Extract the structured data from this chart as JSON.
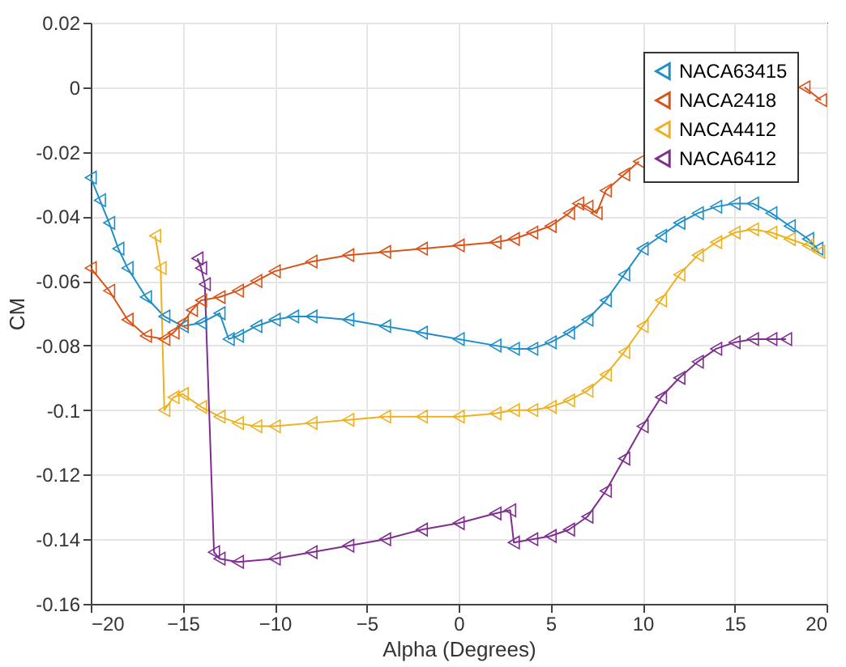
{
  "chart_data": {
    "type": "line",
    "xlabel": "Alpha (Degrees)",
    "ylabel": "CM",
    "xlim": [
      -20,
      20
    ],
    "xticks": [
      -20,
      -15,
      -10,
      -5,
      0,
      5,
      10,
      15,
      20
    ],
    "ylim": [
      -0.16,
      0.02
    ],
    "yticks": [
      -0.16,
      -0.14,
      -0.12,
      -0.1,
      -0.08,
      -0.06,
      -0.04,
      -0.02,
      0,
      0.02
    ],
    "grid": true,
    "legend": "top right",
    "marker": "triangle",
    "line_style": "solid",
    "series": [
      {
        "name": "NACA63415",
        "color": "#1f8fc8",
        "x": [
          -20,
          -19.5,
          -19,
          -18.5,
          -18,
          -17,
          -16,
          -15,
          -14,
          -13,
          -12.5,
          -12,
          -11,
          -10,
          -9,
          -8,
          -6,
          -4,
          -2,
          0,
          2,
          3,
          4,
          5,
          6,
          7,
          8,
          9,
          10,
          11,
          12,
          13,
          14,
          15,
          16,
          17,
          18,
          19,
          19.5
        ],
        "values": [
          -0.028,
          -0.035,
          -0.042,
          -0.05,
          -0.056,
          -0.065,
          -0.071,
          -0.074,
          -0.073,
          -0.07,
          -0.078,
          -0.077,
          -0.074,
          -0.072,
          -0.071,
          -0.071,
          -0.072,
          -0.074,
          -0.076,
          -0.078,
          -0.08,
          -0.081,
          -0.081,
          -0.079,
          -0.076,
          -0.072,
          -0.066,
          -0.058,
          -0.05,
          -0.046,
          -0.042,
          -0.039,
          -0.037,
          -0.036,
          -0.036,
          -0.039,
          -0.043,
          -0.047,
          -0.05
        ]
      },
      {
        "name": "NACA2418",
        "color": "#d95319",
        "x": [
          -20,
          -19,
          -18,
          -17,
          -16,
          -15.5,
          -15,
          -14.5,
          -14,
          -13,
          -12,
          -11,
          -10,
          -8,
          -6,
          -4,
          -2,
          0,
          2,
          3,
          4,
          5,
          6,
          6.5,
          7,
          7.5,
          8,
          9,
          9.8,
          12,
          18.8,
          19.7
        ],
        "values": [
          -0.056,
          -0.063,
          -0.072,
          -0.077,
          -0.078,
          -0.076,
          -0.073,
          -0.069,
          -0.066,
          -0.065,
          -0.063,
          -0.06,
          -0.057,
          -0.054,
          -0.052,
          -0.051,
          -0.05,
          -0.049,
          -0.048,
          -0.047,
          -0.045,
          -0.043,
          -0.039,
          -0.036,
          -0.037,
          -0.039,
          -0.032,
          -0.027,
          -0.023,
          null,
          0.0,
          -0.004
        ]
      },
      {
        "name": "NACA4412",
        "color": "#edb120",
        "x": [
          -16.5,
          -16.2,
          -16,
          -15.5,
          -15,
          -14,
          -13,
          -12,
          -11,
          -10,
          -8,
          -6,
          -4,
          -2,
          0,
          2,
          3,
          4,
          5,
          6,
          7,
          8,
          9,
          10,
          11,
          12,
          13,
          14,
          15,
          16,
          17,
          18,
          19,
          19.6
        ],
        "values": [
          -0.046,
          -0.056,
          -0.1,
          -0.096,
          -0.095,
          -0.099,
          -0.102,
          -0.104,
          -0.105,
          -0.105,
          -0.104,
          -0.103,
          -0.102,
          -0.102,
          -0.102,
          -0.101,
          -0.1,
          -0.1,
          -0.099,
          -0.097,
          -0.094,
          -0.089,
          -0.082,
          -0.074,
          -0.066,
          -0.058,
          -0.052,
          -0.048,
          -0.045,
          -0.044,
          -0.045,
          -0.047,
          -0.049,
          -0.051
        ]
      },
      {
        "name": "NACA6412",
        "color": "#7e2f8e",
        "x": [
          -14.2,
          -14,
          -13.8,
          -13.3,
          -13,
          -12,
          -10,
          -8,
          -6,
          -4,
          -2,
          0,
          2,
          2.8,
          3,
          4,
          5,
          6,
          7,
          8,
          9,
          10,
          11,
          12,
          13,
          14,
          15,
          16,
          17,
          17.8
        ],
        "values": [
          -0.053,
          -0.056,
          -0.061,
          -0.144,
          -0.146,
          -0.147,
          -0.146,
          -0.144,
          -0.142,
          -0.14,
          -0.137,
          -0.135,
          -0.132,
          -0.131,
          -0.141,
          -0.14,
          -0.139,
          -0.137,
          -0.133,
          -0.125,
          -0.115,
          -0.105,
          -0.096,
          -0.09,
          -0.085,
          -0.081,
          -0.079,
          -0.078,
          -0.078,
          -0.078
        ]
      }
    ]
  }
}
